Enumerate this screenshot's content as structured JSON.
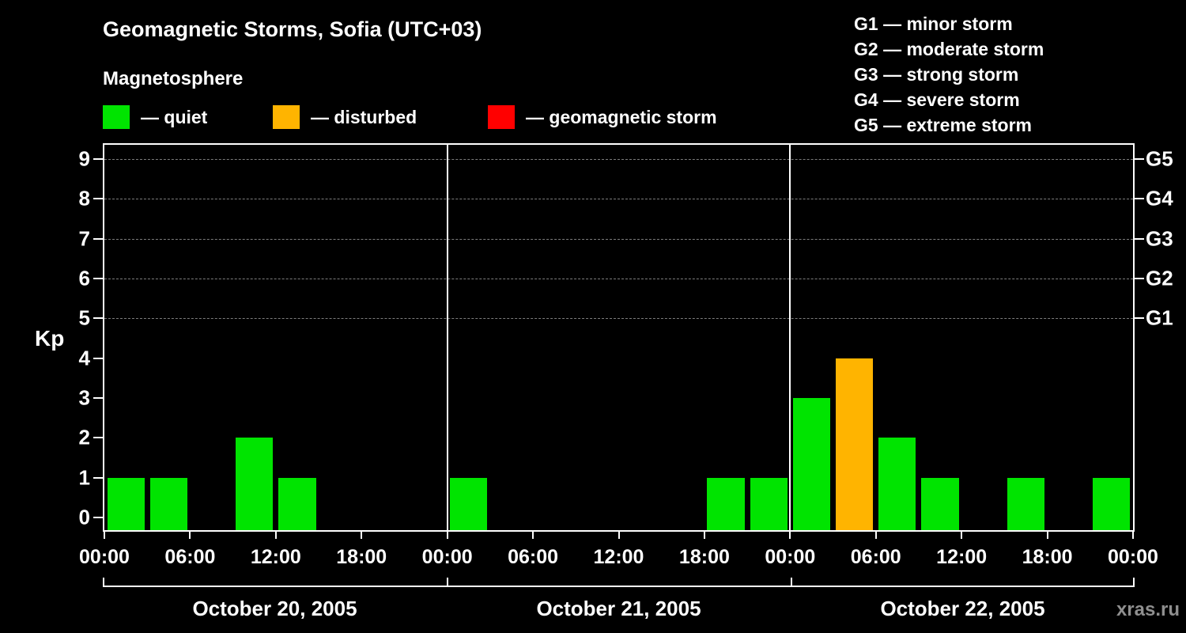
{
  "title": "Geomagnetic Storms, Sofia (UTC+03)",
  "subtitle": "Magnetosphere",
  "legend": {
    "quiet": {
      "label": "— quiet",
      "color": "#00e400"
    },
    "disturbed": {
      "label": "— disturbed",
      "color": "#ffb400"
    },
    "storm": {
      "label": "— geomagnetic storm",
      "color": "#ff0000"
    }
  },
  "g_scale": [
    {
      "code": "G1",
      "label": "G1 — minor storm"
    },
    {
      "code": "G2",
      "label": "G2 — moderate storm"
    },
    {
      "code": "G3",
      "label": "G3 — strong storm"
    },
    {
      "code": "G4",
      "label": "G4 — severe storm"
    },
    {
      "code": "G5",
      "label": "G5 — extreme storm"
    }
  ],
  "watermark": "xras.ru",
  "chart_data": {
    "type": "bar",
    "title": "Geomagnetic Storms, Sofia (UTC+03)",
    "subtitle": "Magnetosphere",
    "ylabel": "Kp",
    "ylim": [
      0,
      9
    ],
    "yticks": [
      0,
      1,
      2,
      3,
      4,
      5,
      6,
      7,
      8,
      9
    ],
    "grid_kp_levels": [
      5,
      6,
      7,
      8,
      9
    ],
    "grid": "dashed horizontal at Kp 5-9",
    "right_axis_labels": [
      {
        "kp": 5,
        "label": "G1"
      },
      {
        "kp": 6,
        "label": "G2"
      },
      {
        "kp": 7,
        "label": "G3"
      },
      {
        "kp": 8,
        "label": "G4"
      },
      {
        "kp": 9,
        "label": "G5"
      }
    ],
    "hours_per_bar": 3,
    "x_tick_hours": [
      0,
      6,
      12,
      18
    ],
    "x_tick_format": [
      "00:00",
      "06:00",
      "12:00",
      "18:00"
    ],
    "x_final_tick": "00:00",
    "color_rules": {
      "green_kp_max": 3,
      "orange_kp": 4,
      "red_kp_min": 5
    },
    "days": [
      {
        "date": "October 20, 2005",
        "kp_values": [
          1,
          1,
          0,
          2,
          1,
          0,
          0,
          0
        ]
      },
      {
        "date": "October 21, 2005",
        "kp_values": [
          1,
          0,
          0,
          0,
          0,
          0,
          1,
          1
        ]
      },
      {
        "date": "October 22, 2005",
        "kp_values": [
          3,
          4,
          2,
          1,
          0,
          1,
          0,
          1
        ]
      }
    ]
  }
}
